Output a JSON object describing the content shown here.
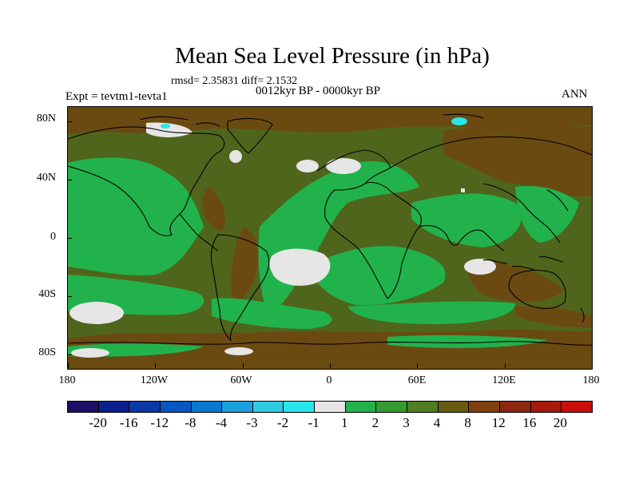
{
  "title": "Mean Sea Level Pressure (in hPa)",
  "stats_text": "rmsd= 2.35831 diff= 2.1532",
  "period_text": "0012kyr BP - 0000kyr BP",
  "experiment_text": "Expt = tevtm1-tevta1",
  "season_text": "ANN",
  "map": {
    "lat_labels": [
      "80N",
      "40N",
      "0",
      "40S",
      "80S"
    ],
    "lon_labels": [
      "180",
      "120W",
      "60W",
      "0",
      "60E",
      "120E",
      "180"
    ],
    "lat_values": [
      80,
      40,
      0,
      -40,
      -80
    ],
    "lon_values": [
      -180,
      -120,
      -60,
      0,
      60,
      120,
      180
    ]
  },
  "colorbar": {
    "labels": [
      "-20",
      "-16",
      "-12",
      "-8",
      "-4",
      "-3",
      "-2",
      "-1",
      "1",
      "2",
      "3",
      "4",
      "8",
      "12",
      "16",
      "20"
    ],
    "colors": [
      "#1b0f66",
      "#0a1f8c",
      "#0b38a8",
      "#0757c2",
      "#0a78d0",
      "#1aa0db",
      "#2ecbe3",
      "#27e6ea",
      "#e6e6e6",
      "#22b24c",
      "#349a32",
      "#4e7d22",
      "#695a12",
      "#7e400f",
      "#8c2810",
      "#a51a0c",
      "#c8100a"
    ]
  },
  "palette": {
    "map_ocean_green": "#22b24c",
    "map_olive": "#50651c",
    "map_brown": "#6b4a12",
    "map_white": "#e6e6e6",
    "map_cyan": "#27e6ea"
  }
}
